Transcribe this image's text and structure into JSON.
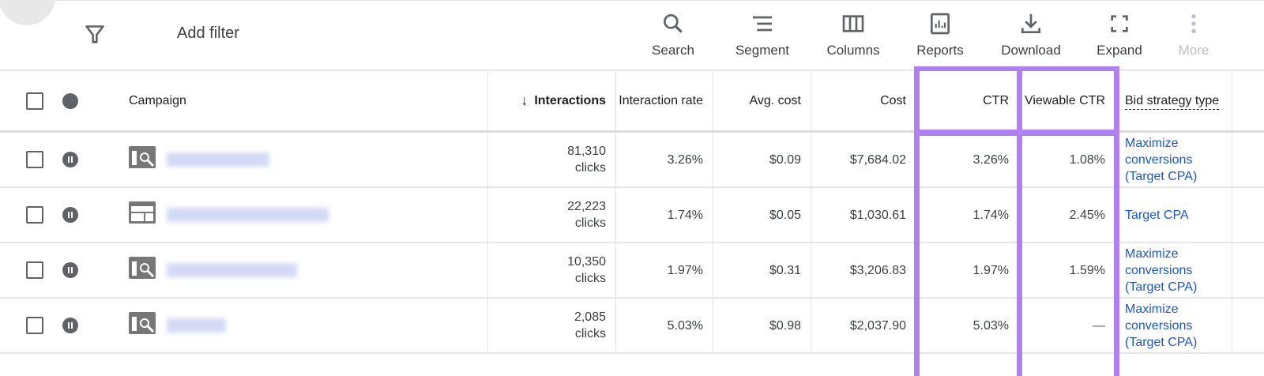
{
  "toolbar": {
    "add_filter": "Add filter",
    "items": [
      {
        "label": "Search",
        "icon": "search-icon"
      },
      {
        "label": "Segment",
        "icon": "segment-icon"
      },
      {
        "label": "Columns",
        "icon": "columns-icon"
      },
      {
        "label": "Reports",
        "icon": "reports-icon"
      },
      {
        "label": "Download",
        "icon": "download-icon"
      },
      {
        "label": "Expand",
        "icon": "expand-icon"
      },
      {
        "label": "More",
        "icon": "more-vert-icon",
        "disabled": true
      }
    ]
  },
  "table": {
    "headers": {
      "campaign": "Campaign",
      "interactions": "Interactions",
      "interaction_rate": "Interaction rate",
      "avg_cost": "Avg. cost",
      "cost": "Cost",
      "ctr": "CTR",
      "viewable_ctr": "Viewable CTR",
      "bid_strategy": "Bid strategy type"
    },
    "sort": {
      "column": "Interactions",
      "direction": "descending"
    },
    "rows": [
      {
        "type_icon": "search-campaign-icon",
        "status": "paused",
        "interactions": "81,310",
        "unit": "clicks",
        "interaction_rate": "3.26%",
        "avg_cost": "$0.09",
        "cost": "$7,684.02",
        "ctr": "3.26%",
        "viewable_ctr": "1.08%",
        "bid_strategy": "Maximize conversions (Target CPA)"
      },
      {
        "type_icon": "display-campaign-icon",
        "status": "paused",
        "interactions": "22,223",
        "unit": "clicks",
        "interaction_rate": "1.74%",
        "avg_cost": "$0.05",
        "cost": "$1,030.61",
        "ctr": "1.74%",
        "viewable_ctr": "2.45%",
        "bid_strategy": "Target CPA"
      },
      {
        "type_icon": "search-campaign-icon",
        "status": "paused",
        "interactions": "10,350",
        "unit": "clicks",
        "interaction_rate": "1.97%",
        "avg_cost": "$0.31",
        "cost": "$3,206.83",
        "ctr": "1.97%",
        "viewable_ctr": "1.59%",
        "bid_strategy": "Maximize conversions (Target CPA)"
      },
      {
        "type_icon": "search-campaign-icon",
        "status": "paused",
        "interactions": "2,085",
        "unit": "clicks",
        "interaction_rate": "5.03%",
        "avg_cost": "$0.98",
        "cost": "$2,037.90",
        "ctr": "5.03%",
        "viewable_ctr": "—",
        "bid_strategy": "Maximize conversions (Target CPA)"
      }
    ]
  },
  "colors": {
    "highlight": "#b07ff0",
    "link": "#1a56db",
    "icon": "#5f6368"
  }
}
